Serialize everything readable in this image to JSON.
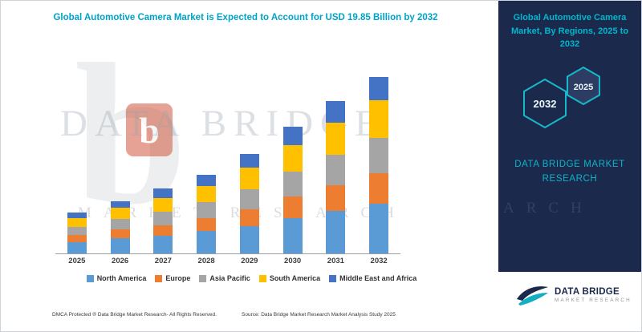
{
  "header": {
    "chart_title": "Global Automotive Camera Market is Expected to Account for USD 19.85 Billion by 2032"
  },
  "chart_data": {
    "type": "bar",
    "stacked": true,
    "title": "Global Automotive Camera Market is Expected to Account for USD 19.85 Billion by 2032",
    "categories": [
      "2025",
      "2026",
      "2027",
      "2028",
      "2029",
      "2030",
      "2031",
      "2032"
    ],
    "series": [
      {
        "name": "North America",
        "color": "#5B9BD5",
        "values": [
          1.3,
          1.7,
          2.0,
          2.5,
          3.1,
          4.0,
          4.8,
          5.6
        ]
      },
      {
        "name": "Europe",
        "color": "#ED7D31",
        "values": [
          0.8,
          1.0,
          1.2,
          1.5,
          1.9,
          2.4,
          2.9,
          3.4
        ]
      },
      {
        "name": "Asia Pacific",
        "color": "#A5A5A5",
        "values": [
          0.9,
          1.2,
          1.5,
          1.8,
          2.2,
          2.8,
          3.4,
          4.0
        ]
      },
      {
        "name": "South America",
        "color": "#FFC000",
        "values": [
          1.0,
          1.2,
          1.5,
          1.8,
          2.4,
          3.0,
          3.6,
          4.2
        ]
      },
      {
        "name": "Middle East and Africa",
        "color": "#4472C4",
        "values": [
          0.6,
          0.8,
          1.1,
          1.2,
          1.6,
          2.0,
          2.4,
          2.65
        ]
      }
    ],
    "totals": [
      4.6,
      5.9,
      7.3,
      8.8,
      11.2,
      14.2,
      17.1,
      19.85
    ],
    "xlabel": "",
    "ylabel": "",
    "ylim": [
      0,
      20
    ],
    "grid": false,
    "legend_position": "bottom"
  },
  "sidebar": {
    "title": "Global Automotive Camera Market, By Regions, 2025 to 2032",
    "hexagons": [
      "2032",
      "2025"
    ],
    "brand_line1": "DATA BRIDGE MARKET",
    "brand_line2": "RESEARCH"
  },
  "watermark": {
    "line1": "DATA BRIDGE",
    "line2": "MARKET RESEARCH",
    "logo_letter": "b",
    "sidebar_fragment": "ARCH"
  },
  "footer": {
    "dmca": "DMCA Protected ® Data Bridge Market Research-  All Rights Reserved.",
    "source": "Source: Data Bridge Market Research  Market Analysis Study 2025"
  },
  "logo": {
    "name": "DATA BRIDGE",
    "subtitle": "MARKET RESEARCH"
  },
  "colors": {
    "accent_teal": "#00a3c8",
    "navy": "#1b294d",
    "hex_stroke": "#17b8c9",
    "watermark_red": "#cf4a2e"
  }
}
